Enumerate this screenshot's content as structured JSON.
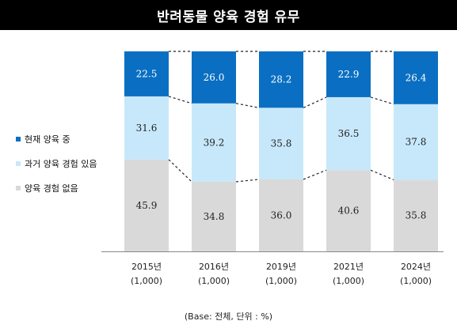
{
  "chart_data": {
    "type": "bar",
    "stacked": true,
    "title": "반려동물 양육 경험 유무",
    "categories": [
      "2015년",
      "2016년",
      "2019년",
      "2021년",
      "2024년"
    ],
    "sample_sizes": [
      "(1,000)",
      "(1,000)",
      "(1,000)",
      "(1,000)",
      "(1,000)"
    ],
    "series": [
      {
        "name": "양육 경험 없음",
        "color": "#d9d9d9",
        "values": [
          45.9,
          34.8,
          36.0,
          40.6,
          35.8
        ]
      },
      {
        "name": "과거 양육 경험 있음",
        "color": "#c7e8fa",
        "values": [
          31.6,
          39.2,
          35.8,
          36.5,
          37.8
        ]
      },
      {
        "name": "현재 양육 중",
        "color": "#0a6fc2",
        "values": [
          22.5,
          26.0,
          28.2,
          22.9,
          26.4
        ]
      }
    ],
    "value_labels": [
      [
        "45.9",
        "34.8",
        "36.0",
        "40.6",
        "35.8"
      ],
      [
        "31.6",
        "39.2",
        "35.8",
        "36.5",
        "37.8"
      ],
      [
        "22.5",
        "26.0",
        "28.2",
        "22.9",
        "26.4"
      ]
    ],
    "legend_order": [
      "현재 양육 중",
      "과거 양육 경험 있음",
      "양육 경험 없음"
    ],
    "legend_placement": "left",
    "ylim": [
      0,
      100
    ],
    "grid": false
  },
  "footnote": "(Base: 전체, 단위 : %)"
}
